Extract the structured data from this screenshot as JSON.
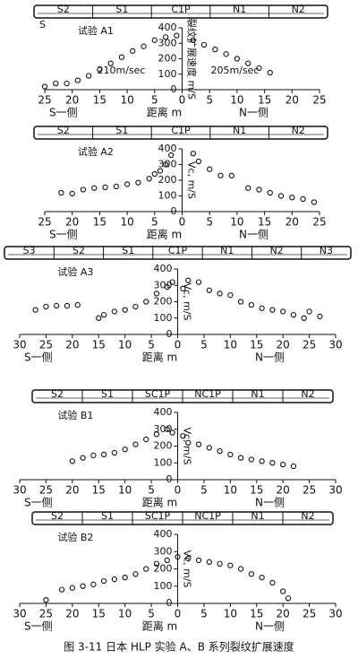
{
  "chart_data": [
    {
      "type": "scatter",
      "title": "试验 A1",
      "corner_label": "S",
      "pipe_labels": [
        "S2",
        "S1",
        "C1P",
        "N1",
        "N2"
      ],
      "x": [
        -25,
        -23,
        -21,
        -19,
        -17,
        -15,
        -13,
        -11,
        -9,
        -7,
        -5,
        -3,
        -1,
        2,
        4,
        6,
        8,
        10,
        12,
        14,
        16
      ],
      "y": [
        20,
        40,
        40,
        60,
        90,
        130,
        170,
        210,
        250,
        280,
        320,
        340,
        350,
        320,
        290,
        260,
        230,
        200,
        170,
        140,
        110
      ],
      "xlim": [
        -25,
        25
      ],
      "ylim": [
        0,
        400
      ],
      "xticks": [
        {
          "value": -25,
          "label": "25"
        },
        {
          "value": -20,
          "label": "20"
        },
        {
          "value": -15,
          "label": "15"
        },
        {
          "value": -10,
          "label": "10"
        },
        {
          "value": -5,
          "label": "5"
        },
        0,
        5,
        10,
        15,
        20,
        25
      ],
      "yticks": [
        0,
        100,
        200,
        300,
        400
      ],
      "ylabel": "裂纹扩展速度 m/S",
      "annotations": [
        "210m/sec",
        "205m/sec"
      ],
      "xlabel": "距离 m",
      "left_label": "S一侧",
      "right_label": "N一侧"
    },
    {
      "type": "scatter",
      "title": "试验 A2",
      "pipe_labels": [
        "S2",
        "S1",
        "C1P",
        "N1",
        "N2"
      ],
      "x": [
        -22,
        -20,
        -18,
        -16,
        -14,
        -12,
        -10,
        -8,
        -6,
        -5,
        -4,
        -3,
        -2,
        2,
        3,
        5,
        7,
        9,
        12,
        14,
        16,
        18,
        20,
        22,
        24
      ],
      "y": [
        120,
        115,
        140,
        150,
        155,
        160,
        175,
        185,
        210,
        240,
        260,
        300,
        360,
        370,
        320,
        270,
        230,
        230,
        150,
        140,
        120,
        100,
        90,
        80,
        60
      ],
      "xlim": [
        -25,
        25
      ],
      "ylim": [
        0,
        400
      ],
      "xticks": [
        {
          "value": -25,
          "label": "25"
        },
        {
          "value": -20,
          "label": "20"
        },
        {
          "value": -15,
          "label": "15"
        },
        {
          "value": -10,
          "label": "10"
        },
        {
          "value": -5,
          "label": "5"
        },
        0,
        5,
        10,
        15,
        20,
        25
      ],
      "yticks": [
        0,
        100,
        200,
        300,
        400
      ],
      "ylabel": "Vc, m/S",
      "xlabel": "距离 m",
      "left_label": "S一侧",
      "right_label": "N一侧"
    },
    {
      "type": "scatter",
      "title": "试验 A3",
      "pipe_labels": [
        "S3",
        "S2",
        "S1",
        "C1P",
        "N1",
        "N2",
        "N3"
      ],
      "x": [
        -27,
        -25,
        -23,
        -21,
        -19,
        -15,
        -14,
        -12,
        -10,
        -8,
        -6,
        -4,
        -2,
        -1,
        1,
        2,
        4,
        6,
        8,
        10,
        12,
        14,
        16,
        18,
        20,
        22,
        24,
        25,
        27
      ],
      "y": [
        150,
        170,
        175,
        175,
        180,
        100,
        120,
        140,
        150,
        170,
        200,
        250,
        290,
        320,
        280,
        330,
        320,
        270,
        250,
        240,
        200,
        180,
        160,
        150,
        140,
        120,
        100,
        140,
        110
      ],
      "xlim": [
        -30,
        30
      ],
      "ylim": [
        0,
        400
      ],
      "xticks": [
        {
          "value": -30,
          "label": "30"
        },
        {
          "value": -25,
          "label": "25"
        },
        {
          "value": -20,
          "label": "20"
        },
        {
          "value": -15,
          "label": "15"
        },
        {
          "value": -10,
          "label": "10"
        },
        {
          "value": -5,
          "label": "5"
        },
        0,
        5,
        10,
        15,
        20,
        25,
        30
      ],
      "yticks": [
        0,
        100,
        200,
        300,
        400
      ],
      "ylabel": "Vc, m/S",
      "xlabel": "距离 m",
      "left_label": "S一侧",
      "right_label": "N一侧"
    },
    {
      "type": "scatter",
      "title": "试验 B1",
      "pipe_labels": [
        "S2",
        "S1",
        "SC1P",
        "NC1P",
        "N1",
        "N2"
      ],
      "x": [
        -20,
        -18,
        -16,
        -14,
        -12,
        -10,
        -8,
        -6,
        -4,
        -2,
        -1,
        1,
        2,
        4,
        6,
        8,
        10,
        12,
        14,
        16,
        18,
        20,
        22
      ],
      "y": [
        110,
        130,
        145,
        150,
        160,
        180,
        210,
        240,
        270,
        300,
        280,
        260,
        220,
        210,
        190,
        170,
        150,
        130,
        120,
        110,
        100,
        90,
        80
      ],
      "xlim": [
        -30,
        30
      ],
      "ylim": [
        0,
        400
      ],
      "xticks": [
        {
          "value": -30,
          "label": "30"
        },
        {
          "value": -25,
          "label": "25"
        },
        {
          "value": -20,
          "label": "20"
        },
        {
          "value": -15,
          "label": "15"
        },
        {
          "value": -10,
          "label": "10"
        },
        {
          "value": -5,
          "label": "5"
        },
        0,
        5,
        10,
        15,
        20,
        25,
        30
      ],
      "yticks": [
        0,
        100,
        200,
        300,
        400
      ],
      "ylabel": "Vc, m/S",
      "xlabel": "距离 m",
      "left_label": "S一侧",
      "right_label": "N一侧"
    },
    {
      "type": "scatter",
      "title": "试验 B2",
      "pipe_labels": [
        "S2",
        "S1",
        "SC1P",
        "NC1P",
        "N1",
        "N2"
      ],
      "x": [
        -25,
        -22,
        -20,
        -18,
        -16,
        -14,
        -12,
        -10,
        -8,
        -6,
        -4,
        -2,
        0,
        2,
        4,
        6,
        8,
        10,
        12,
        14,
        16,
        18,
        20,
        21
      ],
      "y": [
        20,
        80,
        90,
        100,
        110,
        130,
        140,
        150,
        170,
        200,
        230,
        250,
        270,
        260,
        250,
        240,
        230,
        220,
        200,
        170,
        150,
        120,
        70,
        30
      ],
      "xlim": [
        -30,
        30
      ],
      "ylim": [
        0,
        400
      ],
      "xticks": [
        {
          "value": -30,
          "label": "30"
        },
        {
          "value": -25,
          "label": "25"
        },
        {
          "value": -20,
          "label": "20"
        },
        {
          "value": -15,
          "label": "15"
        },
        {
          "value": -10,
          "label": "10"
        },
        {
          "value": -5,
          "label": "5"
        },
        0,
        5,
        10,
        15,
        20,
        25,
        30
      ],
      "yticks": [
        0,
        100,
        200,
        300,
        400
      ],
      "ylabel": "Vc, m/S",
      "xlabel": "距离 m",
      "left_label": "S一侧",
      "right_label": "N一侧"
    }
  ],
  "caption": "图 3-11 日本 HLP 实验 A、B 系列裂纹扩展速度"
}
